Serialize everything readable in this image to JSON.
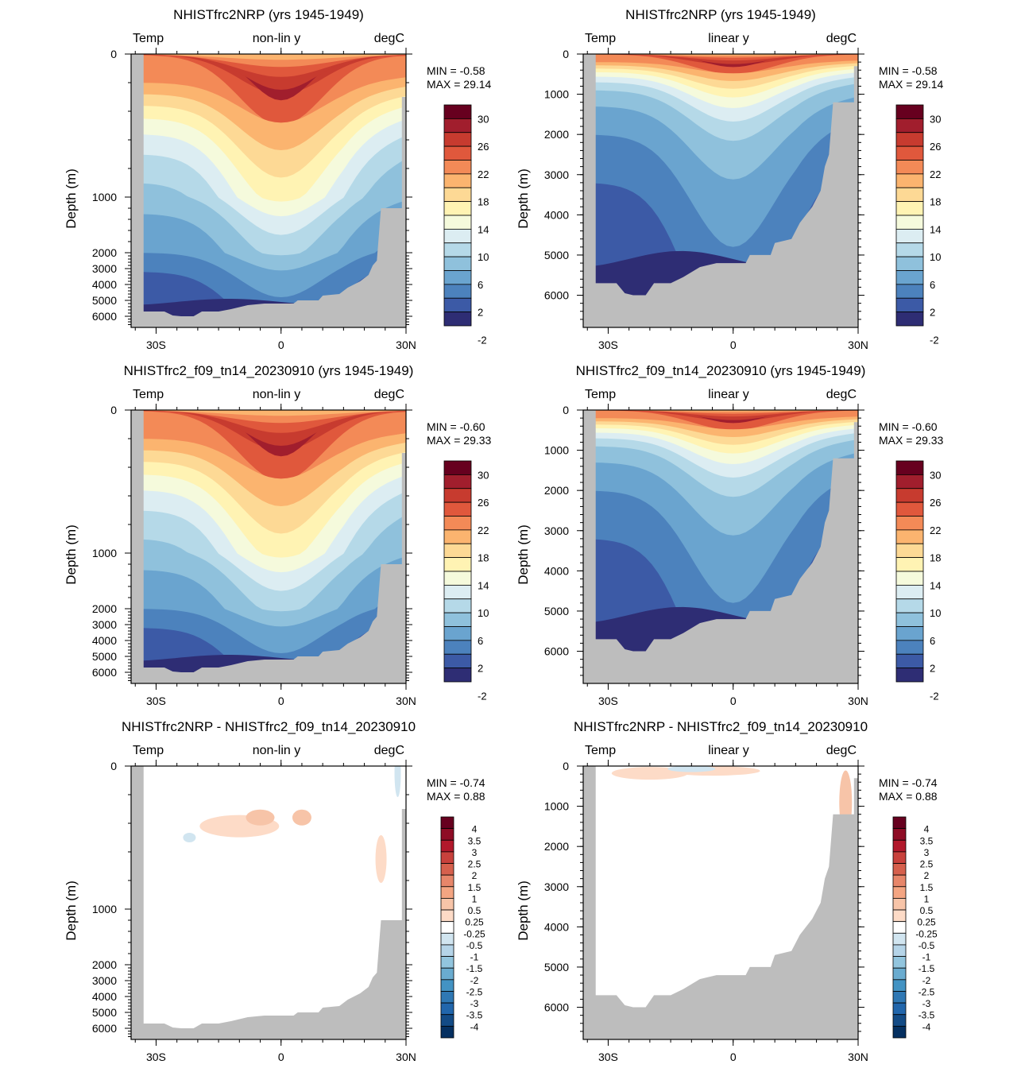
{
  "panels": [
    {
      "title": "NHISTfrc2NRP (yrs 1945-1949)",
      "left_label": "Temp",
      "center_label": "non-lin y",
      "right_label": "degC",
      "ylabel": "Depth (m)",
      "min_text": "MIN =  -0.58",
      "max_text": "MAX =  29.14"
    },
    {
      "title": "NHISTfrc2NRP (yrs 1945-1949)",
      "left_label": "Temp",
      "center_label": "linear y",
      "right_label": "degC",
      "ylabel": "Depth (m)",
      "min_text": "MIN =  -0.58",
      "max_text": "MAX =  29.14"
    },
    {
      "title": "NHISTfrc2_f09_tn14_20230910 (yrs 1945-1949)",
      "left_label": "Temp",
      "center_label": "non-lin y",
      "right_label": "degC",
      "ylabel": "Depth (m)",
      "min_text": "MIN =  -0.60",
      "max_text": "MAX =  29.33"
    },
    {
      "title": "NHISTfrc2_f09_tn14_20230910 (yrs 1945-1949)",
      "left_label": "Temp",
      "center_label": "linear y",
      "right_label": "degC",
      "ylabel": "Depth (m)",
      "min_text": "MIN =  -0.60",
      "max_text": "MAX =  29.33"
    },
    {
      "title": "NHISTfrc2NRP - NHISTfrc2_f09_tn14_20230910",
      "left_label": "Temp",
      "center_label": "non-lin y",
      "right_label": "degC",
      "ylabel": "Depth (m)",
      "min_text": "MIN =  -0.74",
      "max_text": "MAX =   0.88"
    },
    {
      "title": "NHISTfrc2NRP - NHISTfrc2_f09_tn14_20230910",
      "left_label": "Temp",
      "center_label": "linear y",
      "right_label": "degC",
      "ylabel": "Depth (m)",
      "min_text": "MIN =  -0.74",
      "max_text": "MAX =   0.88"
    }
  ],
  "x_ticks": [
    "30S",
    "0",
    "30N"
  ],
  "y_ticks_nonlinear": [
    "0",
    "1000",
    "2000",
    "3000",
    "4000",
    "5000",
    "6000"
  ],
  "y_ticks_linear": [
    "0",
    "1000",
    "2000",
    "3000",
    "4000",
    "5000",
    "6000"
  ],
  "colorbar_temp": {
    "labels": [
      "30",
      "26",
      "22",
      "18",
      "14",
      "10",
      "6",
      "2",
      "-2"
    ],
    "colors": [
      "#67001f",
      "#a11e2d",
      "#c73b2f",
      "#e0583c",
      "#f38a57",
      "#fbb46f",
      "#fdd995",
      "#fff3b3",
      "#f5fadc",
      "#dcedf2",
      "#b5d9e8",
      "#8fc1dc",
      "#6aa4cf",
      "#4c82bd",
      "#3c5aa6",
      "#2e2d74"
    ]
  },
  "colorbar_diff": {
    "labels": [
      "4",
      "3.5",
      "3",
      "2.5",
      "2",
      "1.5",
      "1",
      "0.5",
      "0.25",
      "-0.25",
      "-0.5",
      "-1",
      "-1.5",
      "-2",
      "-2.5",
      "-3",
      "-3.5",
      "-4"
    ],
    "colors": [
      "#67001f",
      "#8e0c25",
      "#b2182b",
      "#c8413c",
      "#d6604d",
      "#e7866a",
      "#f4a582",
      "#f7c4a8",
      "#fddbc7",
      "#ffffff",
      "#d1e5f0",
      "#b5d4e8",
      "#92c5de",
      "#6aacd0",
      "#4393c3",
      "#2f78b4",
      "#2166ac",
      "#134b86",
      "#053061"
    ]
  },
  "chart_data": [
    {
      "type": "heatmap",
      "title": "NHISTfrc2NRP (yrs 1945-1949)",
      "subtitle": "Temp, non-lin y, degC",
      "xlabel": "",
      "ylabel": "Depth (m)",
      "x_range": [
        "~35S",
        "30N"
      ],
      "y_range_m": [
        0,
        6800
      ],
      "y_scale": "non-linear",
      "min": -0.58,
      "max": 29.14,
      "contour_levels": [
        -2,
        0,
        2,
        4,
        6,
        8,
        10,
        12,
        14,
        16,
        18,
        20,
        22,
        24,
        26,
        28,
        30
      ]
    },
    {
      "type": "heatmap",
      "title": "NHISTfrc2NRP (yrs 1945-1949)",
      "subtitle": "Temp, linear y, degC",
      "ylabel": "Depth (m)",
      "y_scale": "linear",
      "min": -0.58,
      "max": 29.14
    },
    {
      "type": "heatmap",
      "title": "NHISTfrc2_f09_tn14_20230910 (yrs 1945-1949)",
      "subtitle": "Temp, non-lin y, degC",
      "ylabel": "Depth (m)",
      "y_scale": "non-linear",
      "min": -0.6,
      "max": 29.33
    },
    {
      "type": "heatmap",
      "title": "NHISTfrc2_f09_tn14_20230910 (yrs 1945-1949)",
      "subtitle": "Temp, linear y, degC",
      "ylabel": "Depth (m)",
      "y_scale": "linear",
      "min": -0.6,
      "max": 29.33
    },
    {
      "type": "heatmap",
      "title": "NHISTfrc2NRP - NHISTfrc2_f09_tn14_20230910",
      "subtitle": "Temp, non-lin y, degC",
      "ylabel": "Depth (m)",
      "y_scale": "non-linear",
      "min": -0.74,
      "max": 0.88,
      "contour_levels": [
        -4,
        -3.5,
        -3,
        -2.5,
        -2,
        -1.5,
        -1,
        -0.5,
        -0.25,
        0.25,
        0.5,
        1,
        1.5,
        2,
        2.5,
        3,
        3.5,
        4
      ]
    },
    {
      "type": "heatmap",
      "title": "NHISTfrc2NRP - NHISTfrc2_f09_tn14_20230910",
      "subtitle": "Temp, linear y, degC",
      "ylabel": "Depth (m)",
      "y_scale": "linear",
      "min": -0.74,
      "max": 0.88
    }
  ]
}
